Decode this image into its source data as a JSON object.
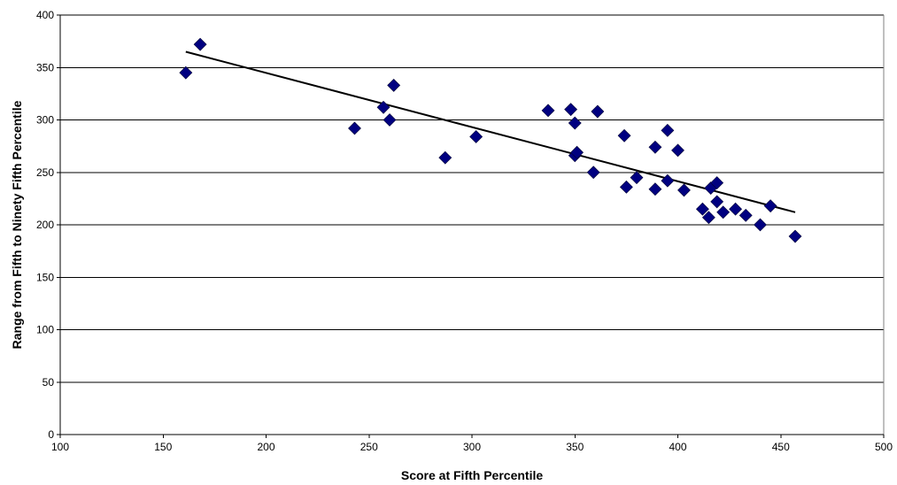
{
  "chart_data": {
    "type": "scatter",
    "title": "",
    "xlabel": "Score at Fifth Percentile",
    "ylabel": "Range from Fifth to Ninety Fifth Percentile",
    "xlim": [
      100,
      500
    ],
    "ylim": [
      0,
      400
    ],
    "x_ticks": [
      100,
      150,
      200,
      250,
      300,
      350,
      400,
      450,
      500
    ],
    "y_ticks": [
      0,
      50,
      100,
      150,
      200,
      250,
      300,
      350,
      400
    ],
    "grid": "horizontal",
    "legend": "none",
    "marker_color": "#000080",
    "trendline_color": "#000000",
    "points": [
      {
        "x": 161,
        "y": 345
      },
      {
        "x": 168,
        "y": 372
      },
      {
        "x": 243,
        "y": 292
      },
      {
        "x": 257,
        "y": 312
      },
      {
        "x": 260,
        "y": 300
      },
      {
        "x": 262,
        "y": 333
      },
      {
        "x": 287,
        "y": 264
      },
      {
        "x": 302,
        "y": 284
      },
      {
        "x": 337,
        "y": 309
      },
      {
        "x": 348,
        "y": 310
      },
      {
        "x": 350,
        "y": 297
      },
      {
        "x": 350,
        "y": 266
      },
      {
        "x": 351,
        "y": 269
      },
      {
        "x": 359,
        "y": 250
      },
      {
        "x": 361,
        "y": 308
      },
      {
        "x": 374,
        "y": 285
      },
      {
        "x": 375,
        "y": 236
      },
      {
        "x": 380,
        "y": 245
      },
      {
        "x": 389,
        "y": 274
      },
      {
        "x": 389,
        "y": 234
      },
      {
        "x": 395,
        "y": 290
      },
      {
        "x": 395,
        "y": 242
      },
      {
        "x": 400,
        "y": 271
      },
      {
        "x": 403,
        "y": 233
      },
      {
        "x": 412,
        "y": 215
      },
      {
        "x": 415,
        "y": 207
      },
      {
        "x": 416,
        "y": 235
      },
      {
        "x": 419,
        "y": 240
      },
      {
        "x": 419,
        "y": 222
      },
      {
        "x": 422,
        "y": 212
      },
      {
        "x": 428,
        "y": 215
      },
      {
        "x": 433,
        "y": 209
      },
      {
        "x": 440,
        "y": 200
      },
      {
        "x": 445,
        "y": 218
      },
      {
        "x": 457,
        "y": 189
      }
    ],
    "trendline": {
      "x": [
        161,
        457
      ],
      "y": [
        365,
        212
      ]
    }
  }
}
